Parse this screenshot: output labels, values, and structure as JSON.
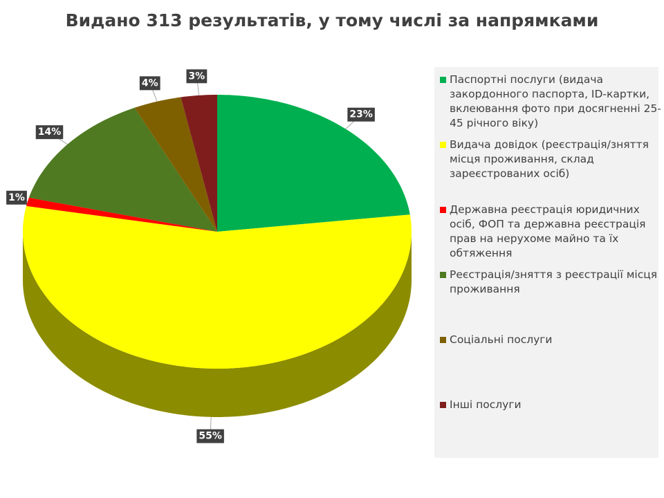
{
  "chart_data": {
    "type": "pie",
    "title": "Видано 313 результатів, у тому числі за напрямками",
    "categories": [
      "Паспортні послуги (видача закордонного паспорта, ID-картки, вклеювання фото при досягненні 25-45 річного віку)",
      "Видача довідок (реєстрація/зняття місця проживання, склад зареєстрованих осіб)",
      "Державна реєстрація юридичних осіб, ФОП та державна реєстрація прав на нерухоме майно та їх обтяження",
      "Реєстрація/зняття з реєстрації місця проживання",
      "Соціальні послуги",
      "Інші послуги"
    ],
    "values": [
      23,
      55,
      1,
      14,
      4,
      3
    ],
    "value_labels": [
      "23%",
      "55%",
      "1%",
      "14%",
      "4%",
      "3%"
    ],
    "colors": [
      "#00b050",
      "#ffff00",
      "#ff0000",
      "#4f7a21",
      "#7f6000",
      "#7f1d1d"
    ],
    "legend": "right"
  }
}
